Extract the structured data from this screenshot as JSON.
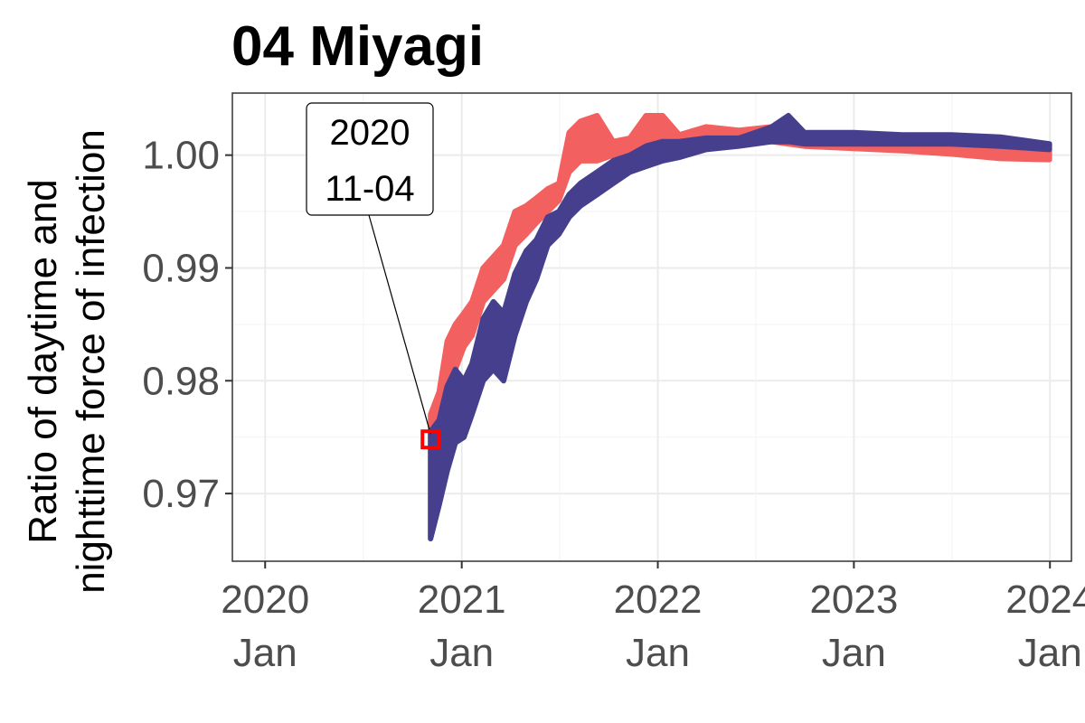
{
  "chart_data": {
    "type": "line",
    "title": "04 Miyagi",
    "xlabel": "",
    "ylabel_lines": [
      "Ratio of daytime and",
      "nighttime force of infection"
    ],
    "x_ticks": [
      {
        "date": "2020-01-01",
        "year": "2020",
        "month": "Jan"
      },
      {
        "date": "2021-01-01",
        "year": "2021",
        "month": "Jan"
      },
      {
        "date": "2022-01-01",
        "year": "2022",
        "month": "Jan"
      },
      {
        "date": "2023-01-01",
        "year": "2023",
        "month": "Jan"
      },
      {
        "date": "2024-01-01",
        "year": "2024",
        "month": "Jan"
      }
    ],
    "xlim": [
      "2019-11-01",
      "2024-02-10"
    ],
    "y_ticks": [
      0.97,
      0.98,
      0.99,
      1.0
    ],
    "y_tick_labels": [
      "0.97",
      "0.98",
      "0.99",
      "1.00"
    ],
    "ylim": [
      0.964,
      1.0055
    ],
    "grid": true,
    "legend": "none",
    "series": [
      {
        "color": "#f26060",
        "band": [
          {
            "x": "2020-11-04",
            "lo": 0.9755,
            "hi": 0.977
          },
          {
            "x": "2020-11-20",
            "lo": 0.977,
            "hi": 0.979
          },
          {
            "x": "2020-12-05",
            "lo": 0.979,
            "hi": 0.9835
          },
          {
            "x": "2020-12-20",
            "lo": 0.981,
            "hi": 0.985
          },
          {
            "x": "2021-01-05",
            "lo": 0.983,
            "hi": 0.986
          },
          {
            "x": "2021-01-20",
            "lo": 0.984,
            "hi": 0.987
          },
          {
            "x": "2021-02-10",
            "lo": 0.987,
            "hi": 0.99
          },
          {
            "x": "2021-03-01",
            "lo": 0.988,
            "hi": 0.991
          },
          {
            "x": "2021-03-20",
            "lo": 0.989,
            "hi": 0.992
          },
          {
            "x": "2021-04-10",
            "lo": 0.992,
            "hi": 0.995
          },
          {
            "x": "2021-05-01",
            "lo": 0.993,
            "hi": 0.9955
          },
          {
            "x": "2021-05-20",
            "lo": 0.994,
            "hi": 0.9962
          },
          {
            "x": "2021-06-10",
            "lo": 0.995,
            "hi": 0.997
          },
          {
            "x": "2021-07-01",
            "lo": 0.996,
            "hi": 0.9975
          },
          {
            "x": "2021-07-20",
            "lo": 0.9985,
            "hi": 1.002
          },
          {
            "x": "2021-08-10",
            "lo": 0.9995,
            "hi": 1.003
          },
          {
            "x": "2021-09-10",
            "lo": 0.9995,
            "hi": 1.0035
          },
          {
            "x": "2021-10-10",
            "lo": 1.0,
            "hi": 1.0012
          },
          {
            "x": "2021-11-10",
            "lo": 1.0002,
            "hi": 1.0015
          },
          {
            "x": "2021-12-10",
            "lo": 1.0005,
            "hi": 1.0035
          },
          {
            "x": "2022-01-10",
            "lo": 1.0005,
            "hi": 1.0035
          },
          {
            "x": "2022-02-10",
            "lo": 1.001,
            "hi": 1.0018
          },
          {
            "x": "2022-04-01",
            "lo": 1.0012,
            "hi": 1.0025
          },
          {
            "x": "2022-06-01",
            "lo": 1.0012,
            "hi": 1.0022
          },
          {
            "x": "2022-08-01",
            "lo": 1.0012,
            "hi": 1.0025
          },
          {
            "x": "2022-10-01",
            "lo": 1.0008,
            "hi": 1.0015
          },
          {
            "x": "2023-01-01",
            "lo": 1.0006,
            "hi": 1.0013
          },
          {
            "x": "2023-04-01",
            "lo": 1.0004,
            "hi": 1.0011
          },
          {
            "x": "2023-07-01",
            "lo": 1.0001,
            "hi": 1.0009
          },
          {
            "x": "2023-10-01",
            "lo": 0.9997,
            "hi": 1.0006
          },
          {
            "x": "2023-12-31",
            "lo": 0.9996,
            "hi": 1.0005
          }
        ]
      },
      {
        "color": "#463f8e",
        "band": [
          {
            "x": "2020-11-04",
            "lo": 0.966,
            "hi": 0.9755
          },
          {
            "x": "2020-11-20",
            "lo": 0.969,
            "hi": 0.9765
          },
          {
            "x": "2020-12-05",
            "lo": 0.972,
            "hi": 0.9795
          },
          {
            "x": "2020-12-20",
            "lo": 0.9745,
            "hi": 0.981
          },
          {
            "x": "2021-01-05",
            "lo": 0.975,
            "hi": 0.98
          },
          {
            "x": "2021-01-20",
            "lo": 0.977,
            "hi": 0.9815
          },
          {
            "x": "2021-02-10",
            "lo": 0.98,
            "hi": 0.9855
          },
          {
            "x": "2021-03-01",
            "lo": 0.981,
            "hi": 0.987
          },
          {
            "x": "2021-03-20",
            "lo": 0.98,
            "hi": 0.986
          },
          {
            "x": "2021-04-10",
            "lo": 0.984,
            "hi": 0.9895
          },
          {
            "x": "2021-05-01",
            "lo": 0.987,
            "hi": 0.9915
          },
          {
            "x": "2021-05-20",
            "lo": 0.989,
            "hi": 0.9925
          },
          {
            "x": "2021-06-10",
            "lo": 0.992,
            "hi": 0.9945
          },
          {
            "x": "2021-07-01",
            "lo": 0.993,
            "hi": 0.995
          },
          {
            "x": "2021-07-20",
            "lo": 0.9945,
            "hi": 0.9965
          },
          {
            "x": "2021-08-10",
            "lo": 0.9955,
            "hi": 0.9975
          },
          {
            "x": "2021-09-10",
            "lo": 0.9965,
            "hi": 0.9985
          },
          {
            "x": "2021-10-10",
            "lo": 0.9975,
            "hi": 0.9995
          },
          {
            "x": "2021-11-10",
            "lo": 0.9985,
            "hi": 1.0
          },
          {
            "x": "2021-12-10",
            "lo": 0.999,
            "hi": 1.0008
          },
          {
            "x": "2022-01-10",
            "lo": 0.9995,
            "hi": 1.0012
          },
          {
            "x": "2022-02-10",
            "lo": 0.9998,
            "hi": 1.0012
          },
          {
            "x": "2022-04-01",
            "lo": 1.0005,
            "hi": 1.0015
          },
          {
            "x": "2022-06-01",
            "lo": 1.0008,
            "hi": 1.0015
          },
          {
            "x": "2022-08-01",
            "lo": 1.0012,
            "hi": 1.0025
          },
          {
            "x": "2022-09-01",
            "lo": 1.0012,
            "hi": 1.0035
          },
          {
            "x": "2022-10-01",
            "lo": 1.001,
            "hi": 1.002
          },
          {
            "x": "2023-01-01",
            "lo": 1.001,
            "hi": 1.002
          },
          {
            "x": "2023-04-01",
            "lo": 1.001,
            "hi": 1.0018
          },
          {
            "x": "2023-07-01",
            "lo": 1.001,
            "hi": 1.0018
          },
          {
            "x": "2023-10-01",
            "lo": 1.0008,
            "hi": 1.0016
          },
          {
            "x": "2023-12-31",
            "lo": 1.0005,
            "hi": 1.001
          }
        ]
      }
    ],
    "annotation": {
      "lines": [
        "2020",
        "11-04"
      ],
      "date": "2020-11-04",
      "value": 0.9748,
      "marker_color": "#ff0000"
    }
  }
}
